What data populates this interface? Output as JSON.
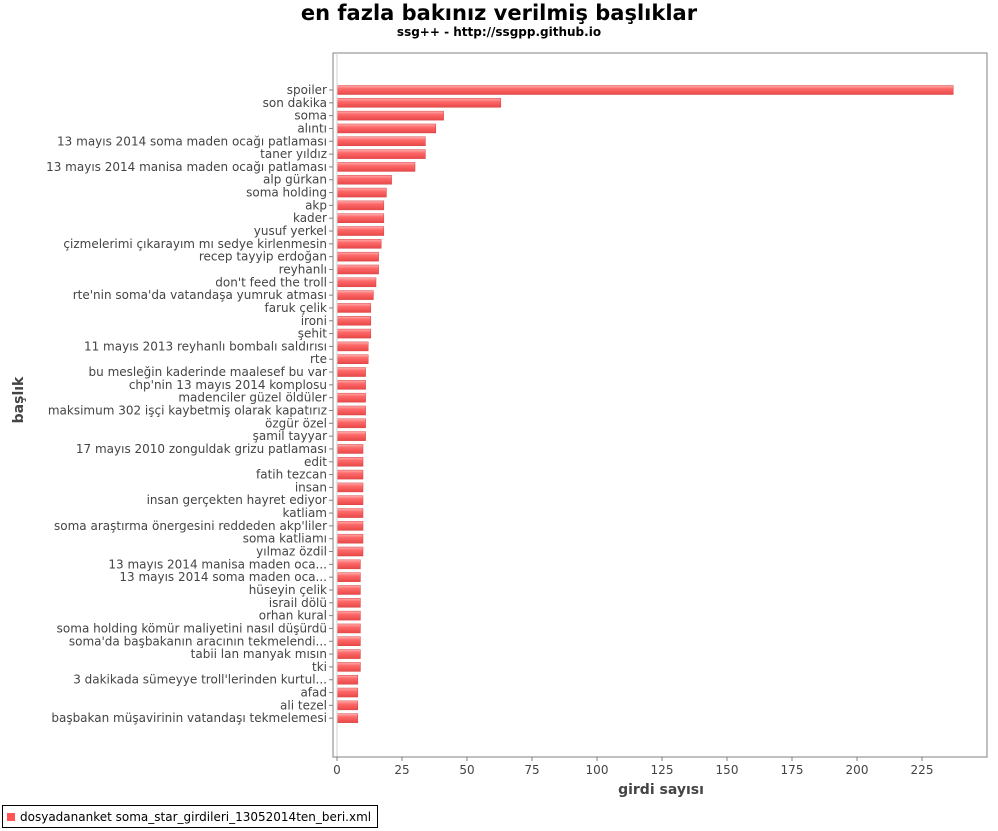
{
  "chart_data": {
    "type": "bar",
    "orientation": "horizontal",
    "title": "en fazla bakınız verilmiş başlıklar",
    "subtitle": "ssg++ - http://ssgpp.github.io",
    "xlabel": "girdi sayısı",
    "ylabel": "başlık",
    "xlim": [
      0,
      250
    ],
    "xticks": [
      0,
      25,
      50,
      75,
      100,
      125,
      150,
      175,
      200,
      225
    ],
    "grid": false,
    "legend_position": "bottom-left",
    "bar_color": "#ff5555",
    "categories": [
      "spoiler",
      "son dakika",
      "soma",
      "alıntı",
      "13 mayıs 2014 soma maden ocağı patlaması",
      "taner yıldız",
      "13 mayıs 2014 manisa maden ocağı patlaması",
      "alp gürkan",
      "soma holding",
      "akp",
      "kader",
      "yusuf yerkel",
      "çizmelerimi çıkarayım mı sedye kirlenmesin",
      "recep tayyip erdoğan",
      "reyhanlı",
      "don't feed the troll",
      "rte'nin soma'da vatandaşa yumruk atması",
      "faruk çelik",
      "ironi",
      "şehit",
      "11 mayıs 2013 reyhanlı bombalı saldırısı",
      "rte",
      "bu mesleğin kaderinde maalesef bu var",
      "chp'nin 13 mayıs 2014 komplosu",
      "madenciler güzel öldüler",
      "maksimum 302 işçi kaybetmiş olarak kapatırız",
      "özgür özel",
      "şamil tayyar",
      "17 mayıs 2010 zonguldak grizu patlaması",
      "edit",
      "fatih tezcan",
      "insan",
      "insan gerçekten hayret ediyor",
      "katliam",
      "soma araştırma önergesini reddeden akp'liler",
      "soma katliamı",
      "yılmaz özdil",
      "13 mayıs 2014 manisa maden oca...",
      "13 mayıs 2014 soma maden oca...",
      "hüseyin çelik",
      "israil dölü",
      "orhan kural",
      "soma holding kömür maliyetini nasıl düşürdü",
      "soma'da başbakanın aracının tekmelendi...",
      "tabii lan manyak mısın",
      "tki",
      "3 dakikada sümeyye troll'lerinden kurtul...",
      "afad",
      "ali tezel",
      "başbakan müşavirinin vatandaşı tekmelemesi"
    ],
    "series": [
      {
        "name": "dosyadananket soma_star_girdileri_13052014ten_beri.xml",
        "values": [
          237,
          63,
          41,
          38,
          34,
          34,
          30,
          21,
          19,
          18,
          18,
          18,
          17,
          16,
          16,
          15,
          14,
          13,
          13,
          13,
          12,
          12,
          11,
          11,
          11,
          11,
          11,
          11,
          10,
          10,
          10,
          10,
          10,
          10,
          10,
          10,
          10,
          9,
          9,
          9,
          9,
          9,
          9,
          9,
          9,
          9,
          8,
          8,
          8,
          8
        ]
      }
    ]
  }
}
